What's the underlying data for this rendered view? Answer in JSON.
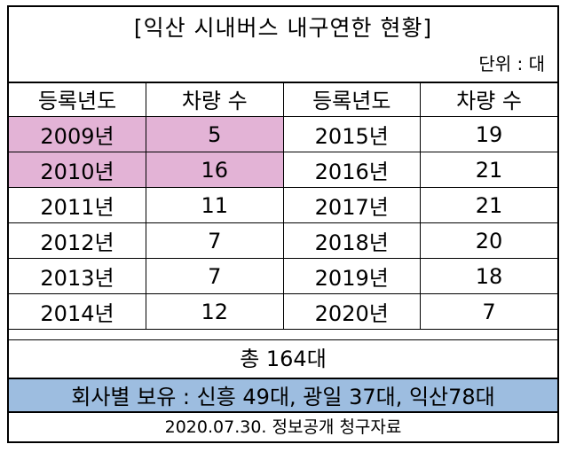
{
  "title": "[익산 시내버스 내구연한 현황]",
  "unit": "단위 : 대",
  "headers": {
    "year_left": "등록년도",
    "count_left": "차량 수",
    "year_right": "등록년도",
    "count_right": "차량 수"
  },
  "rows": [
    {
      "year_left": "2009년",
      "count_left": "5",
      "year_right": "2015년",
      "count_right": "19"
    },
    {
      "year_left": "2010년",
      "count_left": "16",
      "year_right": "2016년",
      "count_right": "21"
    },
    {
      "year_left": "2011년",
      "count_left": "11",
      "year_right": "2017년",
      "count_right": "21"
    },
    {
      "year_left": "2012년",
      "count_left": "7",
      "year_right": "2018년",
      "count_right": "20"
    },
    {
      "year_left": "2013년",
      "count_left": "7",
      "year_right": "2019년",
      "count_right": "18"
    },
    {
      "year_left": "2014년",
      "count_left": "12",
      "year_right": "2020년",
      "count_right": "7"
    }
  ],
  "total": "총 164대",
  "companies": "회사별 보유 : 신흥 49대, 광일 37대, 익산78대",
  "source": "2020.07.30. 정보공개 청구자료",
  "colors": {
    "highlight": "#e3b3d6",
    "companies_bg": "#9dbde0"
  }
}
